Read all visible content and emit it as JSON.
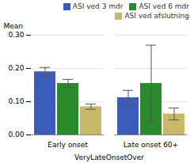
{
  "chart_data": {
    "type": "bar",
    "xlabel": "VeryLateOnsetOver",
    "ylabel": "Mean",
    "categories": [
      "Early onset",
      "Late onset 60+"
    ],
    "series": [
      {
        "name": "ASI ved 3 mdr",
        "color": "#3b5cb8",
        "values": [
          0.19,
          0.112
        ],
        "errors": [
          0.013,
          0.022
        ]
      },
      {
        "name": "ASI ved 6 mdr",
        "color": "#2b8a2b",
        "values": [
          0.155,
          0.155
        ],
        "errors": [
          0.012,
          0.115
        ]
      },
      {
        "name": "ASI ved afslutning",
        "color": "#c8b96a",
        "values": [
          0.085,
          0.063
        ],
        "errors": [
          0.008,
          0.018
        ]
      }
    ],
    "ylim": [
      0.0,
      0.3
    ],
    "yticks": [
      {
        "value": 0.0,
        "label": "0.00"
      },
      {
        "value": 0.1,
        "label": "0.10"
      },
      {
        "value": 0.2,
        "label": "0.20"
      },
      {
        "value": 0.3,
        "label": "0.30"
      }
    ],
    "grid": true,
    "legend": "upper right"
  }
}
